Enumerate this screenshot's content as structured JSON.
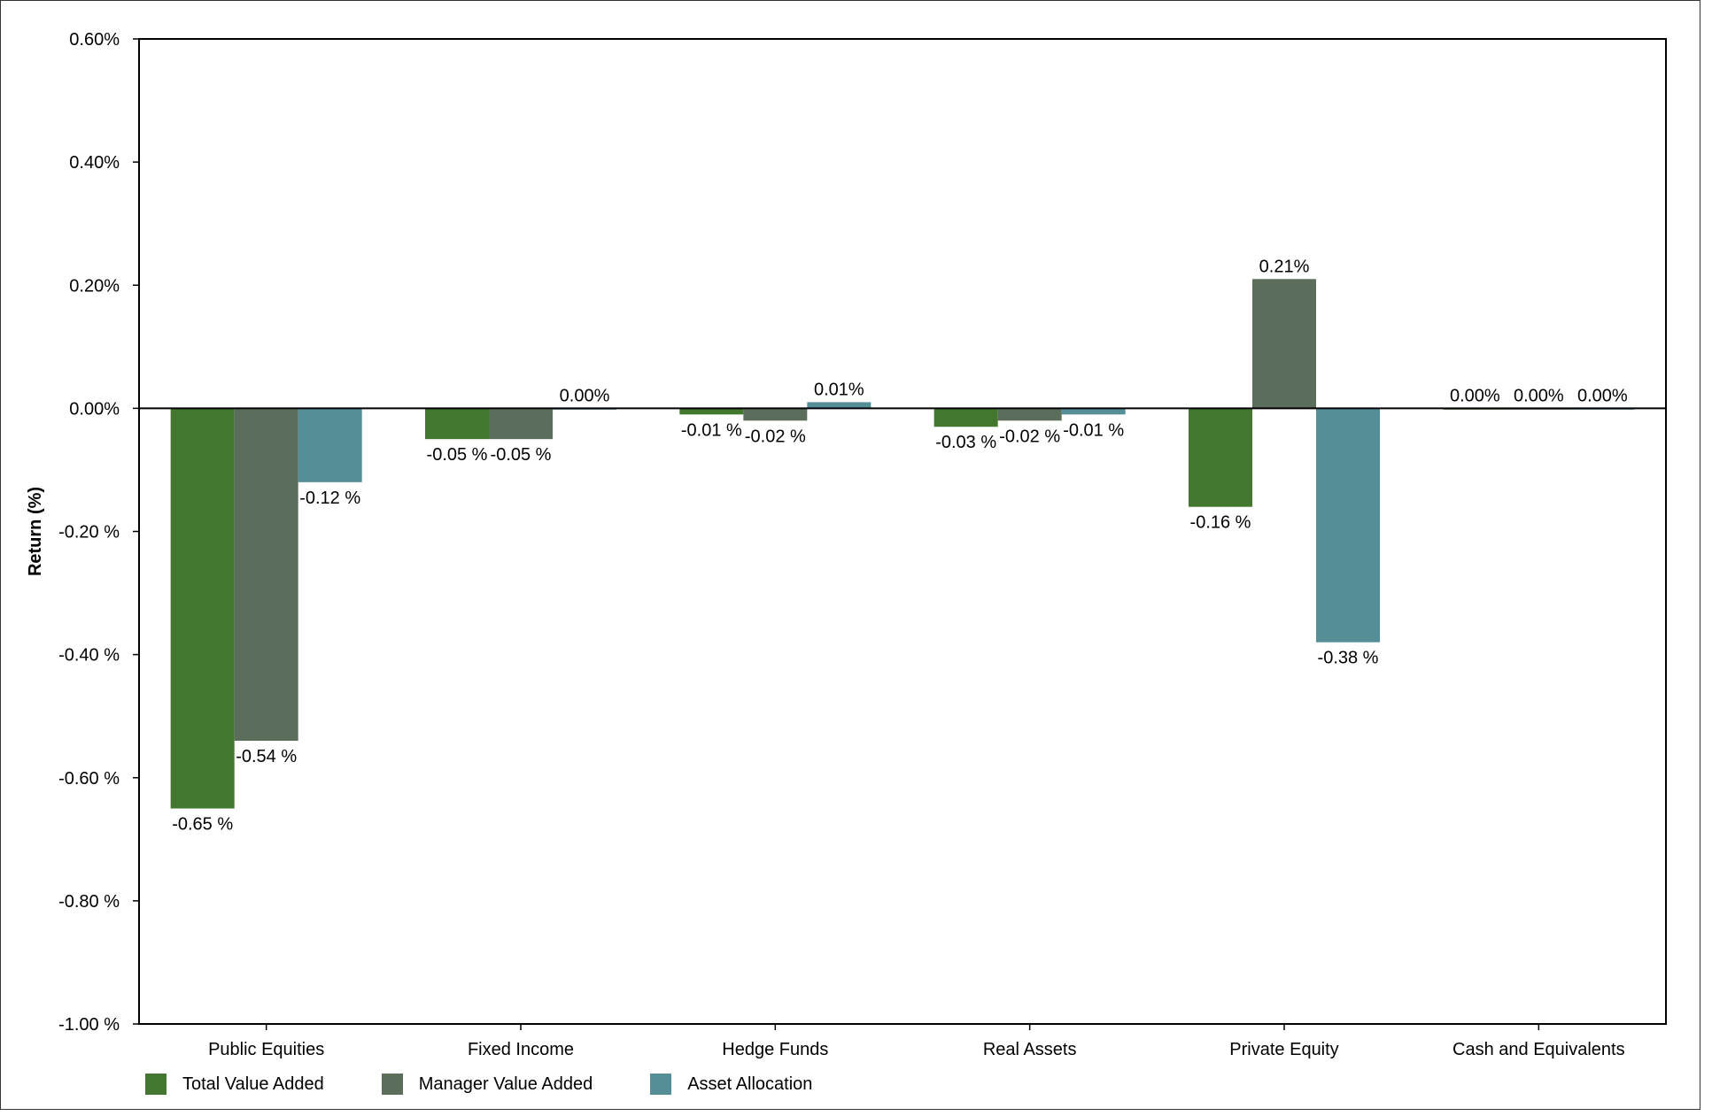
{
  "chart_data": {
    "type": "bar",
    "title": "",
    "xlabel": "",
    "ylabel": "Return (%)",
    "ylim": [
      -1.0,
      0.6
    ],
    "yticks": [
      {
        "value": 0.6,
        "label": "0.60%"
      },
      {
        "value": 0.4,
        "label": "0.40%"
      },
      {
        "value": 0.2,
        "label": "0.20%"
      },
      {
        "value": 0.0,
        "label": "0.00%"
      },
      {
        "value": -0.2,
        "label": "-0.20 %"
      },
      {
        "value": -0.4,
        "label": "-0.40 %"
      },
      {
        "value": -0.6,
        "label": "-0.60 %"
      },
      {
        "value": -0.8,
        "label": "-0.80 %"
      },
      {
        "value": -1.0,
        "label": "-1.00 %"
      }
    ],
    "categories": [
      "Public Equities",
      "Fixed Income",
      "Hedge Funds",
      "Real Assets",
      "Private Equity",
      "Cash and Equivalents"
    ],
    "series": [
      {
        "name": "Total Value Added",
        "color": "#43772f",
        "values": [
          -0.65,
          -0.05,
          -0.01,
          -0.03,
          -0.16,
          0.0
        ],
        "labels": [
          "-0.65 %",
          "-0.05 %",
          "-0.01 %",
          "-0.03 %",
          "-0.16 %",
          "0.00%"
        ]
      },
      {
        "name": "Manager Value Added",
        "color": "#5b6e5c",
        "values": [
          -0.54,
          -0.05,
          -0.02,
          -0.02,
          0.21,
          0.0
        ],
        "labels": [
          "-0.54 %",
          "-0.05 %",
          "-0.02 %",
          "-0.02 %",
          "0.21%",
          "0.00%"
        ]
      },
      {
        "name": "Asset Allocation",
        "color": "#568e98",
        "values": [
          -0.12,
          0.0,
          0.01,
          -0.01,
          -0.38,
          0.0
        ],
        "labels": [
          "-0.12 %",
          "0.00%",
          "0.01%",
          "-0.01 %",
          "-0.38 %",
          "0.00%"
        ]
      }
    ],
    "legend_position": "bottom-left",
    "grid": false
  }
}
